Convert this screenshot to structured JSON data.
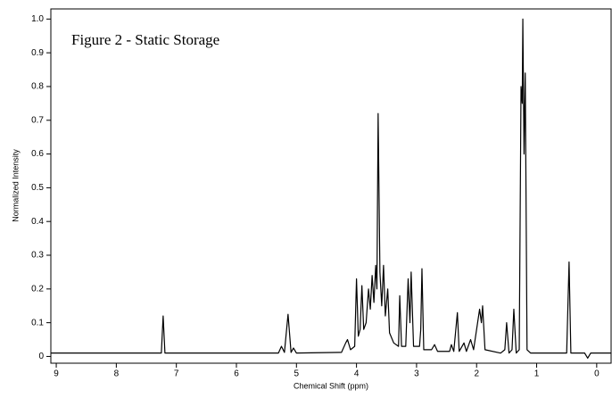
{
  "chart_data": {
    "type": "line",
    "annotation": "Figure 2 - Static Storage",
    "xlabel": "Chemical Shift (ppm)",
    "ylabel": "Normalized Intensity",
    "xlim": [
      9.09,
      -0.24
    ],
    "ylim": [
      -0.02,
      1.03
    ],
    "xticks": [
      9,
      8,
      7,
      6,
      5,
      4,
      3,
      2,
      1,
      0
    ],
    "yticks": [
      0,
      0.1,
      0.2,
      0.3,
      0.4,
      0.5,
      0.6,
      0.7,
      0.8,
      0.9,
      {
        "value": 1,
        "label": "1.0"
      }
    ],
    "x": [
      9.09,
      7.3,
      7.25,
      7.22,
      7.19,
      5.3,
      5.25,
      5.2,
      5.14,
      5.09,
      5.05,
      5.0,
      4.25,
      4.18,
      4.15,
      4.1,
      4.03,
      4.0,
      3.97,
      3.94,
      3.91,
      3.88,
      3.84,
      3.8,
      3.77,
      3.74,
      3.71,
      3.68,
      3.66,
      3.64,
      3.61,
      3.58,
      3.55,
      3.52,
      3.48,
      3.45,
      3.38,
      3.3,
      3.28,
      3.25,
      3.18,
      3.14,
      3.11,
      3.09,
      3.05,
      2.95,
      2.93,
      2.91,
      2.88,
      2.75,
      2.7,
      2.65,
      2.45,
      2.42,
      2.38,
      2.32,
      2.29,
      2.21,
      2.17,
      2.1,
      2.05,
      1.95,
      1.92,
      1.9,
      1.86,
      1.6,
      1.53,
      1.5,
      1.46,
      1.41,
      1.38,
      1.34,
      1.29,
      1.26,
      1.24,
      1.23,
      1.21,
      1.19,
      1.16,
      1.1,
      0.5,
      0.46,
      0.43,
      0.2,
      0.15,
      0.1,
      -0.24
    ],
    "series": [
      {
        "color": "#000000",
        "values": [
          0.01,
          0.01,
          0.01,
          0.12,
          0.01,
          0.01,
          0.03,
          0.012,
          0.125,
          0.012,
          0.025,
          0.01,
          0.012,
          0.04,
          0.05,
          0.02,
          0.03,
          0.23,
          0.06,
          0.08,
          0.21,
          0.08,
          0.1,
          0.2,
          0.14,
          0.24,
          0.16,
          0.27,
          0.2,
          0.72,
          0.25,
          0.15,
          0.27,
          0.12,
          0.2,
          0.07,
          0.04,
          0.03,
          0.18,
          0.03,
          0.03,
          0.23,
          0.1,
          0.25,
          0.03,
          0.03,
          0.08,
          0.26,
          0.02,
          0.02,
          0.035,
          0.015,
          0.015,
          0.035,
          0.015,
          0.13,
          0.015,
          0.04,
          0.015,
          0.05,
          0.02,
          0.14,
          0.1,
          0.15,
          0.02,
          0.01,
          0.02,
          0.1,
          0.01,
          0.02,
          0.14,
          0.01,
          0.02,
          0.8,
          0.75,
          1.0,
          0.6,
          0.84,
          0.02,
          0.01,
          0.01,
          0.28,
          0.01,
          0.01,
          -0.005,
          0.01,
          0.01
        ]
      }
    ]
  }
}
